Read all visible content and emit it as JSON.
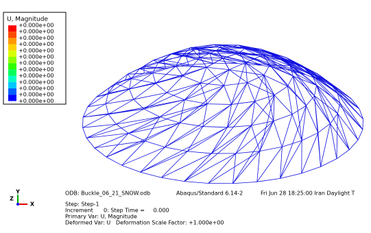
{
  "legend": {
    "title": "U, Magnitude",
    "labels": [
      "+0.000e+00",
      "+0.000e+00",
      "+0.000e+00",
      "+0.000e+00",
      "+0.000e+00",
      "+0.000e+00",
      "+0.000e+00",
      "+0.000e+00",
      "+0.000e+00",
      "+0.000e+00",
      "+0.000e+00",
      "+0.000e+00",
      "+0.000e+00"
    ],
    "colors": [
      "#ff0000",
      "#ff4c00",
      "#ff9900",
      "#ffd200",
      "#d8ff00",
      "#8cff00",
      "#2eff00",
      "#00ff5c",
      "#00ffc4",
      "#00c8ff",
      "#0060ff",
      "#0000ff"
    ]
  },
  "triad": {
    "y": "Y",
    "z": "Z",
    "x": "X"
  },
  "info": {
    "odb": "ODB: Buckle_06_21_SNOW.odb",
    "solver": "Abaqus/Standard 6.14-2",
    "date": "Fri Jun 28 18:25:00 Iran Daylight T",
    "lines": [
      "Step: Step-1",
      "Increment      0: Step Time =     0.000",
      "Primary Var: U, Magnitude",
      "Deformed Var: U   Deformation Scale Factor: +1.000e+00"
    ]
  }
}
